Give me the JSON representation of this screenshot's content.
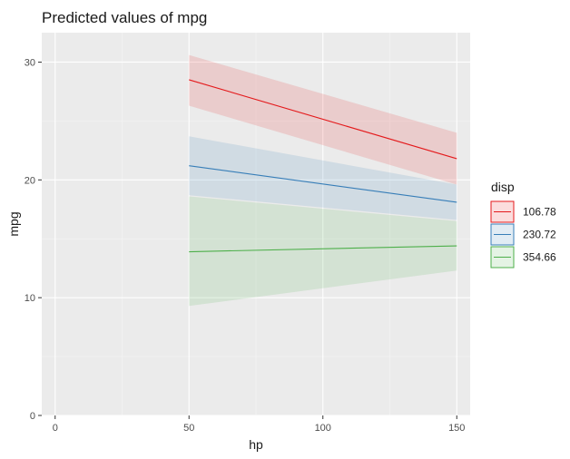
{
  "chart_data": {
    "type": "line",
    "title": "Predicted values of mpg",
    "xlabel": "hp",
    "ylabel": "mpg",
    "xlim": [
      -5,
      155
    ],
    "ylim": [
      0,
      32.5
    ],
    "x_ticks": [
      0,
      50,
      100,
      150
    ],
    "y_ticks": [
      0,
      10,
      20,
      30
    ],
    "grid": true,
    "legend_title": "disp",
    "legend_position": "right",
    "x": [
      50,
      150
    ],
    "series": [
      {
        "name": "106.78",
        "color": "#e41a1c",
        "values": [
          28.5,
          21.8
        ],
        "lower": [
          26.3,
          19.6
        ],
        "upper": [
          30.6,
          24.0
        ]
      },
      {
        "name": "230.72",
        "color": "#377eb8",
        "values": [
          21.2,
          18.1
        ],
        "lower": [
          18.7,
          16.6
        ],
        "upper": [
          23.7,
          19.6
        ]
      },
      {
        "name": "354.66",
        "color": "#4daf4a",
        "values": [
          13.9,
          14.4
        ],
        "lower": [
          9.3,
          12.3
        ],
        "upper": [
          18.6,
          16.5
        ]
      }
    ]
  }
}
